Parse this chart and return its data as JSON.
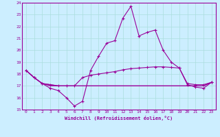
{
  "xlabel": "Windchill (Refroidissement éolien,°C)",
  "x_values": [
    0,
    1,
    2,
    3,
    4,
    5,
    6,
    7,
    8,
    9,
    10,
    11,
    12,
    13,
    14,
    15,
    16,
    17,
    18,
    19,
    20,
    21,
    22,
    23
  ],
  "line1": [
    18.3,
    17.7,
    17.2,
    16.8,
    16.6,
    16.0,
    15.3,
    15.7,
    18.3,
    19.5,
    20.6,
    20.8,
    22.7,
    23.7,
    21.2,
    21.5,
    21.7,
    20.0,
    19.0,
    18.5,
    17.1,
    16.9,
    16.8,
    17.3
  ],
  "line2": [
    18.3,
    17.7,
    17.2,
    17.1,
    17.0,
    17.0,
    17.0,
    17.7,
    17.9,
    18.0,
    18.1,
    18.2,
    18.35,
    18.45,
    18.5,
    18.55,
    18.6,
    18.6,
    18.55,
    18.5,
    17.2,
    17.1,
    17.1,
    17.3
  ],
  "line3": [
    18.3,
    17.7,
    17.2,
    17.1,
    17.0,
    17.0,
    17.0,
    17.0,
    17.0,
    17.0,
    17.0,
    17.0,
    17.0,
    17.0,
    17.0,
    17.0,
    17.0,
    17.0,
    17.0,
    17.0,
    17.0,
    17.0,
    17.0,
    17.3
  ],
  "line4": [
    18.3,
    17.7,
    17.2,
    17.0,
    17.0,
    17.0,
    17.0,
    17.0,
    17.0,
    17.0,
    17.0,
    17.0,
    17.0,
    17.0,
    17.0,
    17.0,
    17.0,
    17.0,
    17.0,
    17.0,
    17.0,
    17.0,
    17.0,
    17.3
  ],
  "bg_color": "#cceeff",
  "line_color": "#990099",
  "grid_color": "#aadddd",
  "ylim": [
    15,
    24
  ],
  "xlim": [
    -0.5,
    23.5
  ]
}
